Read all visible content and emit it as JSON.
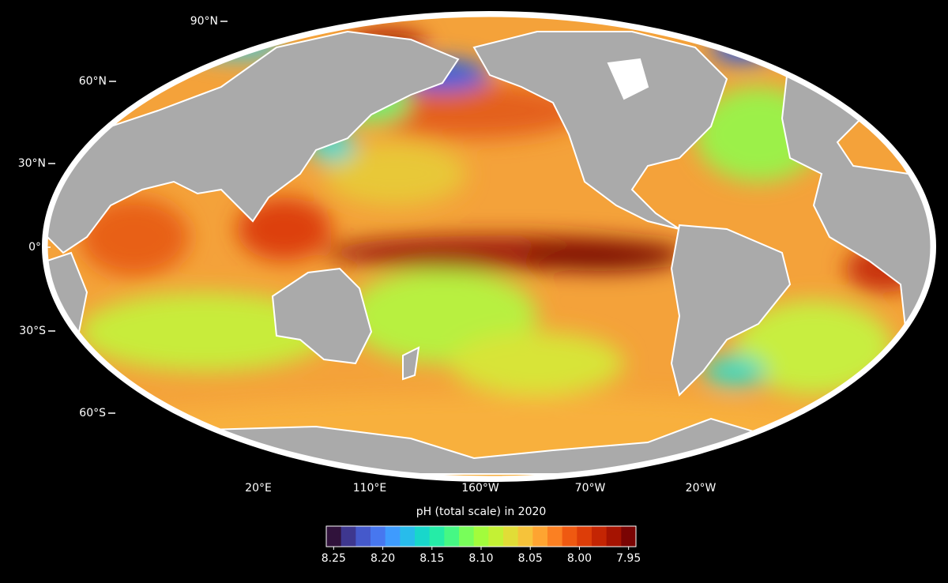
{
  "map": {
    "lat_labels": [
      "90°N",
      "60°N",
      "30°N",
      "0°",
      "30°S",
      "60°S"
    ],
    "lon_labels": [
      "20°E",
      "110°E",
      "160°W",
      "70°W",
      "20°W"
    ]
  },
  "colorbar": {
    "title": "pH (total scale) in 2020",
    "lim": [
      8.25,
      7.95
    ],
    "ticks": [
      8.25,
      {
        "value": 8.2,
        "label": "8.20"
      },
      8.15,
      {
        "value": 8.1,
        "label": "8.10"
      },
      8.05,
      {
        "value": 8.0,
        "label": "8.00"
      },
      7.95
    ],
    "colors": [
      "#30123b",
      "#3e378f",
      "#4559cb",
      "#4777ef",
      "#3e9bfe",
      "#28bceb",
      "#18d7cb",
      "#25eca7",
      "#46f884",
      "#78fe5a",
      "#a2fc3c",
      "#c4f134",
      "#e1dd37",
      "#f6c33a",
      "#fea431",
      "#fb8022",
      "#ef5911",
      "#dd3d08",
      "#c42503",
      "#a51301",
      "#7a0403"
    ]
  }
}
